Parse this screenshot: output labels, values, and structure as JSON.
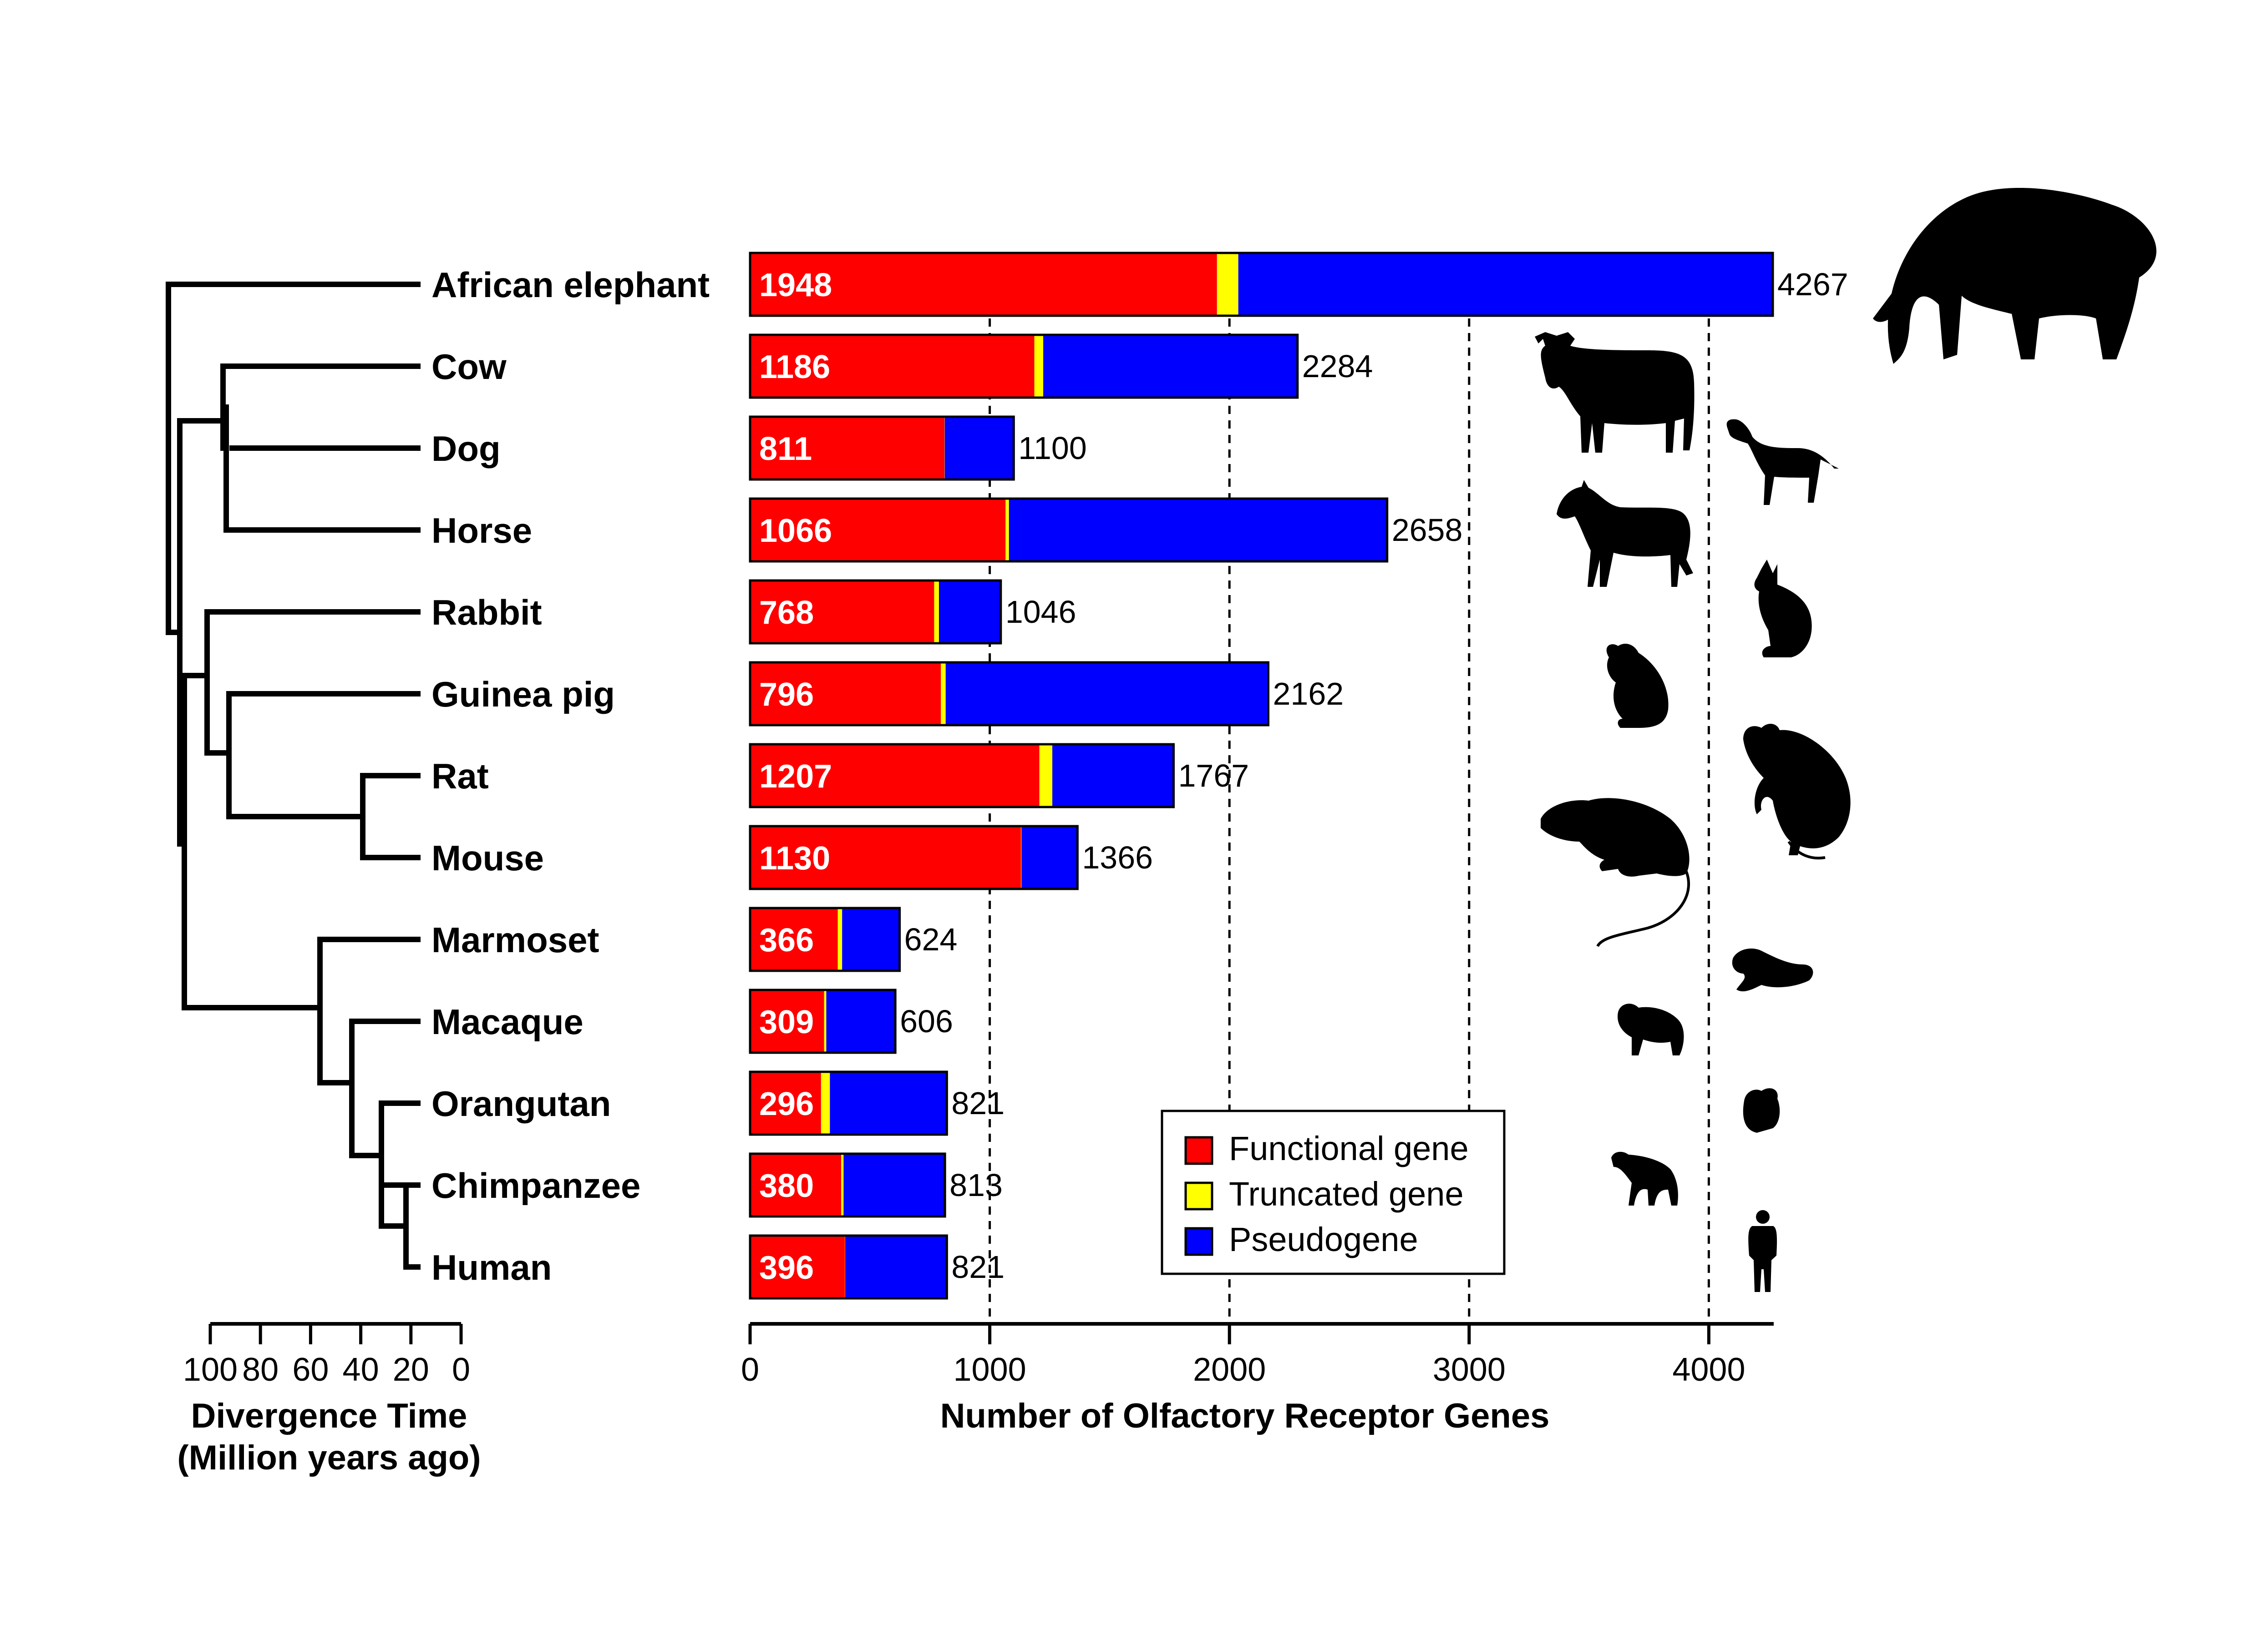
{
  "chart_data": {
    "type": "bar",
    "stacked": true,
    "orientation": "horizontal",
    "categories": [
      "African elephant",
      "Cow",
      "Dog",
      "Horse",
      "Rabbit",
      "Guinea pig",
      "Rat",
      "Mouse",
      "Marmoset",
      "Macaque",
      "Orangutan",
      "Chimpanzee",
      "Human"
    ],
    "series": [
      {
        "name": "Functional gene",
        "color": "#ff0000",
        "values": [
          1948,
          1186,
          811,
          1066,
          768,
          796,
          1207,
          1130,
          366,
          309,
          296,
          380,
          396
        ]
      },
      {
        "name": "Truncated gene",
        "color": "#ffff00",
        "values": [
          89,
          37,
          1,
          14,
          20,
          20,
          54,
          2,
          18,
          9,
          37,
          10,
          1
        ]
      },
      {
        "name": "Pseudogene",
        "color": "#0000ff",
        "values": [
          2230,
          1061,
          288,
          1578,
          258,
          1346,
          506,
          234,
          240,
          288,
          488,
          423,
          424
        ]
      }
    ],
    "totals": [
      4267,
      2284,
      1100,
      2658,
      1046,
      2162,
      1767,
      1366,
      624,
      606,
      821,
      813,
      821
    ],
    "xlabel": "Number of Olfactory Receptor Genes",
    "xlim": [
      0,
      4267
    ],
    "xticks": [
      0,
      1000,
      2000,
      3000,
      4000
    ],
    "gridlines": [
      1000,
      2000,
      3000,
      4000
    ],
    "legend": {
      "position": "bottom-right",
      "labels": [
        "Functional gene",
        "Truncated gene",
        "Pseudogene"
      ]
    }
  },
  "tree": {
    "xlabel_line1": "Divergence Time",
    "xlabel_line2": "(Million years ago)",
    "ticks": [
      "100",
      "80",
      "60",
      "40",
      "20",
      "0"
    ]
  },
  "silhouettes": [
    "elephant-icon",
    "cow-icon",
    "dog-icon",
    "horse-icon",
    "rabbit-icon",
    "guinea-pig-icon",
    "rat-icon",
    "mouse-icon",
    "marmoset-icon",
    "macaque-icon",
    "orangutan-icon",
    "chimpanzee-icon",
    "human-icon"
  ]
}
